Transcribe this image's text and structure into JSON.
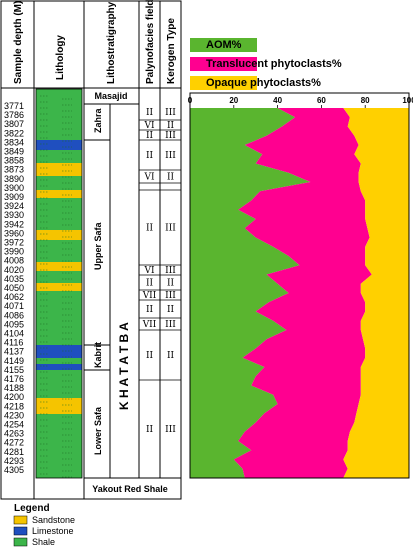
{
  "headers": {
    "depth": "Sample depth (M)",
    "lithology": "Lithology",
    "lithostratigraphy": "Lithostratigraphy",
    "palynofacies": "Palynofacies field",
    "kerogen": "Kerogen Type"
  },
  "depth_labels": [
    "3771",
    "3786",
    "3807",
    "3822",
    "3834",
    "3849",
    "3858",
    "3873",
    "3890",
    "3900",
    "3909",
    "3924",
    "3930",
    "3942",
    "3960",
    "3972",
    "3990",
    "4008",
    "4020",
    "4035",
    "4050",
    "4062",
    "4071",
    "4086",
    "4095",
    "4104",
    "4116",
    "4137",
    "4149",
    "4155",
    "4176",
    "4188",
    "4200",
    "4218",
    "4230",
    "4254",
    "4263",
    "4272",
    "4281",
    "4293",
    "4305"
  ],
  "formations": {
    "masajid": "Masajid",
    "zahra": "Zahra",
    "upper_safa": "Upper Safa",
    "kabrit": "Kabrit",
    "lower_safa": "Lower Safa",
    "khatatba": "K H A T A T B A",
    "yakout": "Yakout Red Shale"
  },
  "palynofacies_fields": [
    "II",
    "VI",
    "II",
    "II",
    "VI",
    "II",
    "II",
    "VI",
    "II",
    "VII",
    "II",
    "VII",
    "II",
    "II"
  ],
  "kerogen_types": [
    "III",
    "II",
    "III",
    "III",
    "II",
    "III",
    "III",
    "III",
    "II",
    "III",
    "II",
    "III",
    "II",
    "III"
  ],
  "lithology_legend": {
    "title": "Legend",
    "items": [
      {
        "label": "Sandstone",
        "color": "#f5c400"
      },
      {
        "label": "Limestone",
        "color": "#1f4fbf"
      },
      {
        "label": "Shale",
        "color": "#3cb54a"
      }
    ]
  },
  "chart_data": {
    "type": "area",
    "stacked": true,
    "orientation": "horizontal",
    "title": "",
    "xlabel": "",
    "ylabel": "",
    "xlim": [
      0,
      100
    ],
    "xticks": [
      0,
      20,
      40,
      60,
      80,
      100
    ],
    "y_axis": "Sample depth (M)",
    "ylim": [
      3765,
      4310
    ],
    "categories": [
      3771,
      3786,
      3807,
      3822,
      3834,
      3849,
      3858,
      3873,
      3890,
      3900,
      3909,
      3924,
      3930,
      3942,
      3960,
      3972,
      3990,
      4008,
      4020,
      4035,
      4050,
      4062,
      4071,
      4086,
      4095,
      4104,
      4116,
      4137,
      4149,
      4155,
      4176,
      4188,
      4200,
      4218,
      4230,
      4254,
      4263,
      4272,
      4281,
      4293,
      4305
    ],
    "series": [
      {
        "name": "AOM%",
        "color": "#5ab52f",
        "values": [
          40,
          48,
          42,
          35,
          25,
          33,
          30,
          45,
          55,
          32,
          28,
          22,
          30,
          25,
          30,
          38,
          45,
          50,
          35,
          40,
          45,
          36,
          30,
          38,
          44,
          35,
          30,
          24,
          34,
          30,
          28,
          38,
          40,
          34,
          30,
          25,
          22,
          28,
          20,
          24,
          25
        ]
      },
      {
        "name": "Translucent phytoclasts%",
        "color": "#ff0090",
        "values": [
          30,
          25,
          30,
          40,
          52,
          42,
          48,
          32,
          22,
          46,
          52,
          58,
          50,
          56,
          52,
          42,
          35,
          30,
          48,
          38,
          33,
          44,
          50,
          40,
          34,
          44,
          50,
          56,
          44,
          48,
          50,
          40,
          37,
          42,
          45,
          48,
          50,
          44,
          50,
          48,
          45
        ]
      },
      {
        "name": "Opaque phytoclasts%",
        "color": "#ffd000",
        "values": [
          30,
          27,
          28,
          25,
          23,
          25,
          22,
          23,
          23,
          22,
          20,
          20,
          20,
          19,
          18,
          20,
          20,
          20,
          17,
          22,
          22,
          20,
          20,
          22,
          22,
          21,
          20,
          20,
          22,
          22,
          22,
          22,
          23,
          24,
          25,
          27,
          28,
          28,
          30,
          28,
          30
        ]
      }
    ]
  }
}
